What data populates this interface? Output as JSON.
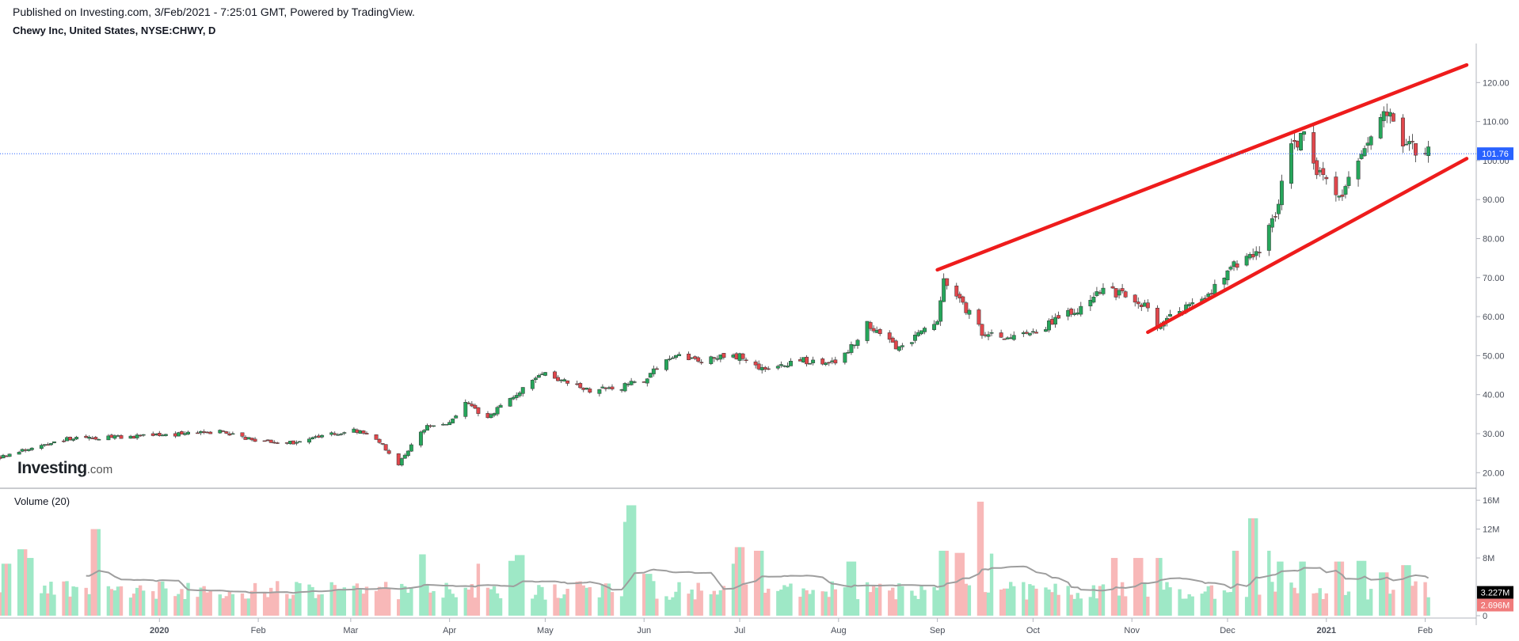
{
  "header": {
    "published": "Published on Investing.com, 3/Feb/2021 - 7:25:01 GMT, Powered by TradingView.",
    "symbol": "Chewy Inc, United States, NYSE:CHWY, D"
  },
  "logo": {
    "main": "Investing",
    "suffix": ".com"
  },
  "colors": {
    "up": "#26a65b",
    "down": "#e0474c",
    "vol_up": "#9ee8c6",
    "vol_down": "#f8b8b8",
    "trend": "#ee1c1c",
    "price_tag": "#2962ff",
    "ma": "#9e9e9e"
  },
  "chart_data": {
    "type": "candlestick",
    "price_axis": {
      "ticks": [
        20,
        30,
        40,
        50,
        60,
        70,
        80,
        90,
        100,
        110,
        120
      ],
      "tick_labels": [
        "20.00",
        "30.00",
        "40.00",
        "50.00",
        "60.00",
        "70.00",
        "80.00",
        "90.00",
        "100.00",
        "110.00",
        "120.00"
      ],
      "range": [
        16,
        130
      ]
    },
    "current_price": {
      "value": 101.76,
      "label": "101.76"
    },
    "x_axis": {
      "labels": [
        "2020",
        "Feb",
        "Mar",
        "Apr",
        "May",
        "Jun",
        "Jul",
        "Aug",
        "Sep",
        "Oct",
        "Nov",
        "Dec",
        "2021",
        "Feb"
      ],
      "label_dates": [
        "2020-01-01",
        "2020-02-01",
        "2020-03-01",
        "2020-04-01",
        "2020-05-01",
        "2020-06-01",
        "2020-07-01",
        "2020-08-01",
        "2020-09-01",
        "2020-10-01",
        "2020-11-01",
        "2020-12-01",
        "2021-01-01",
        "2021-02-01"
      ],
      "range": [
        "2019-11-12",
        "2021-02-17"
      ]
    },
    "close_path": [
      [
        "2019-11-12",
        24
      ],
      [
        "2019-11-20",
        26
      ],
      [
        "2019-12-01",
        28.5
      ],
      [
        "2019-12-15",
        29
      ],
      [
        "2020-01-01",
        29.5
      ],
      [
        "2020-01-10",
        30
      ],
      [
        "2020-01-20",
        30.5
      ],
      [
        "2020-02-01",
        28
      ],
      [
        "2020-02-10",
        27.5
      ],
      [
        "2020-02-20",
        29
      ],
      [
        "2020-03-01",
        31
      ],
      [
        "2020-03-05",
        30
      ],
      [
        "2020-03-10",
        28
      ],
      [
        "2020-03-16",
        22
      ],
      [
        "2020-03-20",
        27
      ],
      [
        "2020-03-25",
        32
      ],
      [
        "2020-04-01",
        33
      ],
      [
        "2020-04-06",
        38
      ],
      [
        "2020-04-13",
        34
      ],
      [
        "2020-04-20",
        39
      ],
      [
        "2020-04-27",
        44
      ],
      [
        "2020-05-01",
        45
      ],
      [
        "2020-05-08",
        43
      ],
      [
        "2020-05-15",
        41
      ],
      [
        "2020-05-25",
        42
      ],
      [
        "2020-06-01",
        44
      ],
      [
        "2020-06-10",
        50
      ],
      [
        "2020-06-20",
        49
      ],
      [
        "2020-07-01",
        50
      ],
      [
        "2020-07-10",
        46
      ],
      [
        "2020-07-20",
        49
      ],
      [
        "2020-07-27",
        48
      ],
      [
        "2020-08-01",
        48
      ],
      [
        "2020-08-10",
        58
      ],
      [
        "2020-08-20",
        52
      ],
      [
        "2020-08-27",
        56
      ],
      [
        "2020-09-01",
        58
      ],
      [
        "2020-09-03",
        70
      ],
      [
        "2020-09-08",
        64
      ],
      [
        "2020-09-15",
        56
      ],
      [
        "2020-09-22",
        54
      ],
      [
        "2020-10-01",
        56
      ],
      [
        "2020-10-15",
        62
      ],
      [
        "2020-10-22",
        67
      ],
      [
        "2020-11-01",
        65
      ],
      [
        "2020-11-05",
        63
      ],
      [
        "2020-11-09",
        57
      ],
      [
        "2020-11-12",
        60
      ],
      [
        "2020-11-23",
        64
      ],
      [
        "2020-12-01",
        72
      ],
      [
        "2020-12-10",
        76
      ],
      [
        "2020-12-16",
        86
      ],
      [
        "2020-12-21",
        104
      ],
      [
        "2020-12-25",
        106
      ],
      [
        "2020-12-30",
        96
      ],
      [
        "2021-01-05",
        90
      ],
      [
        "2021-01-12",
        100
      ],
      [
        "2021-01-19",
        113
      ],
      [
        "2021-01-26",
        104
      ],
      [
        "2021-02-01",
        101.76
      ],
      [
        "2021-02-02",
        101.76
      ]
    ],
    "volume_axis": {
      "ticks": [
        0,
        4,
        8,
        12,
        16
      ],
      "tick_labels": [
        "0",
        "",
        "8M",
        "12M",
        "16M"
      ],
      "max": 17
    },
    "volume_panel": {
      "title": "Volume (20)",
      "ma_value": {
        "value": 3.227,
        "label": "3.227M"
      },
      "last_volume": {
        "value": 2.696,
        "label": "2.696M"
      }
    },
    "volume_spikes": [
      [
        "2019-11-14",
        7.2
      ],
      [
        "2019-11-19",
        9.2
      ],
      [
        "2019-11-21",
        8
      ],
      [
        "2019-12-12",
        12
      ],
      [
        "2020-02-14",
        4.5
      ],
      [
        "2020-03-23",
        8.5
      ],
      [
        "2020-04-11",
        7.2
      ],
      [
        "2020-04-20",
        7.6
      ],
      [
        "2020-04-23",
        8.4
      ],
      [
        "2020-05-27",
        13
      ],
      [
        "2020-05-28",
        15.3
      ],
      [
        "2020-06-02",
        5.8
      ],
      [
        "2020-06-30",
        7.2
      ],
      [
        "2020-07-01",
        9.5
      ],
      [
        "2020-07-07",
        9
      ],
      [
        "2020-08-05",
        7.5
      ],
      [
        "2020-09-03",
        9
      ],
      [
        "2020-09-08",
        8.7
      ],
      [
        "2020-09-14",
        15.8
      ],
      [
        "2020-09-19",
        8.6
      ],
      [
        "2020-10-26",
        8
      ],
      [
        "2020-11-03",
        8
      ],
      [
        "2020-11-09",
        8
      ],
      [
        "2020-12-04",
        9
      ],
      [
        "2020-12-09",
        13.5
      ],
      [
        "2020-12-13",
        9
      ],
      [
        "2020-12-18",
        7.5
      ],
      [
        "2020-12-25",
        7.5
      ],
      [
        "2021-01-05",
        7.5
      ],
      [
        "2021-01-12",
        7.6
      ],
      [
        "2021-01-19",
        6
      ],
      [
        "2021-01-26",
        7
      ]
    ],
    "trendlines": [
      {
        "name": "upper",
        "from": [
          "2020-09-01",
          72
        ],
        "to": [
          "2021-02-14",
          124.5
        ]
      },
      {
        "name": "lower",
        "from": [
          "2020-11-06",
          56
        ],
        "to": [
          "2021-02-14",
          100.5
        ]
      }
    ]
  }
}
